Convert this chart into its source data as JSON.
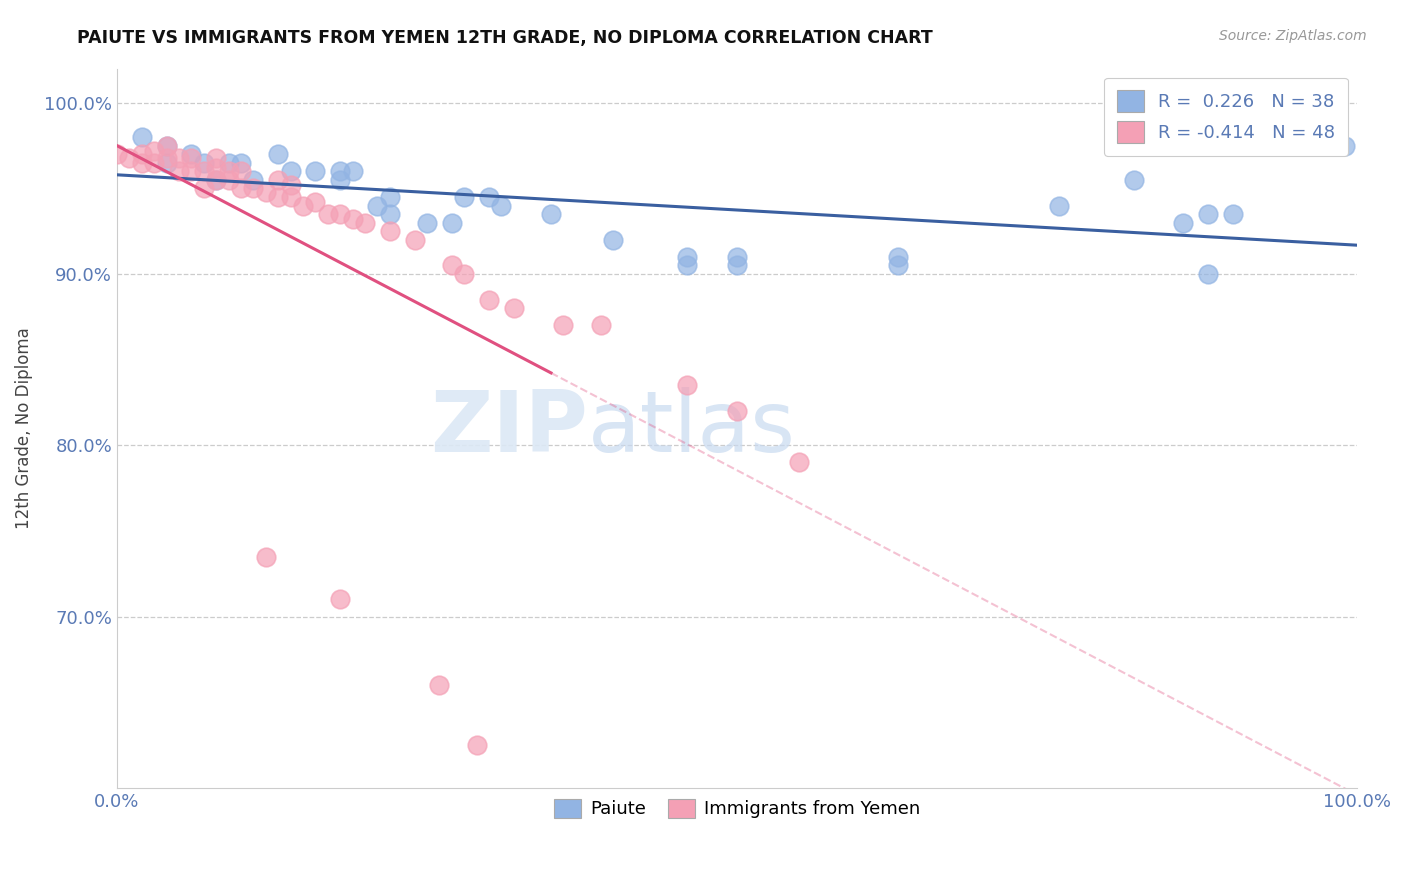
{
  "title": "PAIUTE VS IMMIGRANTS FROM YEMEN 12TH GRADE, NO DIPLOMA CORRELATION CHART",
  "source": "Source: ZipAtlas.com",
  "ylabel": "12th Grade, No Diploma",
  "xlim": [
    0.0,
    1.0
  ],
  "ylim": [
    0.6,
    1.02
  ],
  "x_ticks": [
    0.0,
    0.25,
    0.5,
    0.75,
    1.0
  ],
  "x_tick_labels": [
    "0.0%",
    "",
    "",
    "",
    "100.0%"
  ],
  "y_ticks": [
    0.7,
    0.8,
    0.9,
    1.0
  ],
  "y_tick_labels": [
    "70.0%",
    "80.0%",
    "90.0%",
    "100.0%"
  ],
  "legend_labels": [
    "Paiute",
    "Immigrants from Yemen"
  ],
  "r_blue": 0.226,
  "n_blue": 38,
  "r_pink": -0.414,
  "n_pink": 48,
  "blue_color": "#92b4e3",
  "pink_color": "#f4a0b5",
  "blue_line_color": "#3a5fa0",
  "pink_line_color": "#e05080",
  "watermark_zip": "ZIP",
  "watermark_atlas": "atlas",
  "background_color": "#ffffff",
  "grid_color": "#cccccc",
  "blue_x": [
    0.02,
    0.04,
    0.04,
    0.06,
    0.07,
    0.08,
    0.09,
    0.1,
    0.11,
    0.13,
    0.14,
    0.16,
    0.18,
    0.18,
    0.19,
    0.21,
    0.22,
    0.22,
    0.25,
    0.27,
    0.28,
    0.3,
    0.31,
    0.35,
    0.4,
    0.46,
    0.46,
    0.5,
    0.5,
    0.63,
    0.63,
    0.76,
    0.82,
    0.86,
    0.88,
    0.88,
    0.9,
    0.99
  ],
  "blue_y": [
    0.98,
    0.975,
    0.965,
    0.97,
    0.965,
    0.955,
    0.965,
    0.965,
    0.955,
    0.97,
    0.96,
    0.96,
    0.955,
    0.96,
    0.96,
    0.94,
    0.935,
    0.945,
    0.93,
    0.93,
    0.945,
    0.945,
    0.94,
    0.935,
    0.92,
    0.91,
    0.905,
    0.91,
    0.905,
    0.91,
    0.905,
    0.94,
    0.955,
    0.93,
    0.935,
    0.9,
    0.935,
    0.975
  ],
  "pink_x": [
    0.0,
    0.01,
    0.02,
    0.02,
    0.03,
    0.03,
    0.04,
    0.04,
    0.05,
    0.05,
    0.06,
    0.06,
    0.07,
    0.07,
    0.08,
    0.08,
    0.08,
    0.09,
    0.09,
    0.1,
    0.1,
    0.11,
    0.12,
    0.13,
    0.13,
    0.14,
    0.14,
    0.15,
    0.16,
    0.17,
    0.18,
    0.19,
    0.2,
    0.22,
    0.24,
    0.27,
    0.28,
    0.3,
    0.32,
    0.36,
    0.39,
    0.46,
    0.5,
    0.55,
    0.12,
    0.18,
    0.26,
    0.29
  ],
  "pink_y": [
    0.97,
    0.968,
    0.965,
    0.97,
    0.965,
    0.972,
    0.968,
    0.975,
    0.96,
    0.968,
    0.96,
    0.968,
    0.95,
    0.96,
    0.955,
    0.962,
    0.968,
    0.955,
    0.96,
    0.95,
    0.96,
    0.95,
    0.948,
    0.945,
    0.955,
    0.945,
    0.952,
    0.94,
    0.942,
    0.935,
    0.935,
    0.932,
    0.93,
    0.925,
    0.92,
    0.905,
    0.9,
    0.885,
    0.88,
    0.87,
    0.87,
    0.835,
    0.82,
    0.79,
    0.735,
    0.71,
    0.66,
    0.625
  ]
}
